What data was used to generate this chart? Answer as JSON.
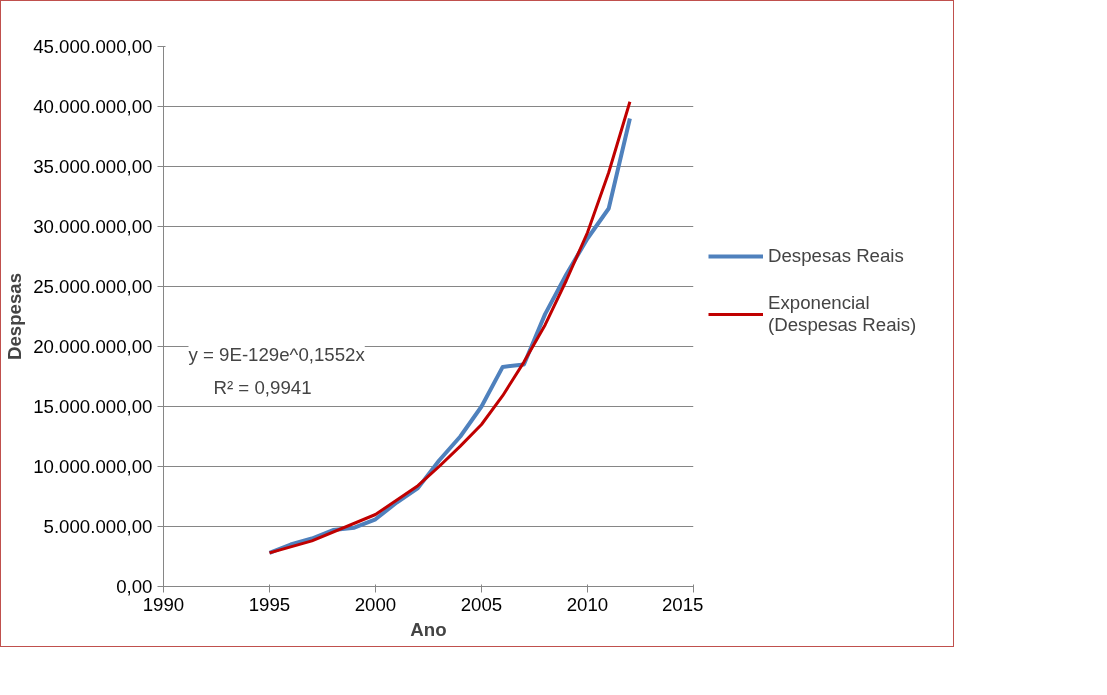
{
  "chart_data": {
    "type": "line",
    "xlabel": "Ano",
    "ylabel": "Despesas",
    "xlim": [
      1990,
      2015
    ],
    "xticks": [
      1990,
      1995,
      2000,
      2005,
      2010,
      2015
    ],
    "ylim": [
      0,
      45000000
    ],
    "yticks": [
      {
        "value": 0,
        "label": "0,00"
      },
      {
        "value": 5000000,
        "label": "5.000.000,00"
      },
      {
        "value": 10000000,
        "label": "10.000.000,00"
      },
      {
        "value": 15000000,
        "label": "15.000.000,00"
      },
      {
        "value": 20000000,
        "label": "20.000.000,00"
      },
      {
        "value": 25000000,
        "label": "25.000.000,00"
      },
      {
        "value": 30000000,
        "label": "30.000.000,00"
      },
      {
        "value": 35000000,
        "label": "35.000.000,00"
      },
      {
        "value": 40000000,
        "label": "40.000.000,00"
      },
      {
        "value": 45000000,
        "label": "45.000.000,00"
      }
    ],
    "grid": "y",
    "legend": "right",
    "marker": "none",
    "series": [
      {
        "name": "Despesas Reais",
        "color": "#4f81bd",
        "x": [
          1995,
          1996,
          1997,
          1998,
          1999,
          2000,
          2001,
          2002,
          2003,
          2004,
          2005,
          2006,
          2007,
          2008,
          2009,
          2010,
          2011,
          2012
        ],
        "values": [
          2800000,
          3500000,
          4000000,
          4700000,
          4900000,
          5600000,
          7000000,
          8200000,
          10500000,
          12500000,
          15000000,
          18300000,
          18500000,
          22700000,
          26000000,
          29000000,
          31500000,
          39000000
        ]
      },
      {
        "name": "Exponencial (Despesas Reais)",
        "color": "#c00000",
        "x": [
          1995,
          1997,
          2000,
          2002,
          2003,
          2004,
          2005,
          2006,
          2007,
          2008,
          2009,
          2010,
          2011,
          2012
        ],
        "values": [
          2800000,
          3800000,
          6000000,
          8400000,
          10000000,
          11700000,
          13500000,
          15900000,
          18700000,
          21800000,
          25500000,
          29500000,
          34500000,
          40400000
        ]
      }
    ],
    "annotations": [
      "y = 9E-129e^0,1552x",
      "R² = 0,9941"
    ]
  }
}
